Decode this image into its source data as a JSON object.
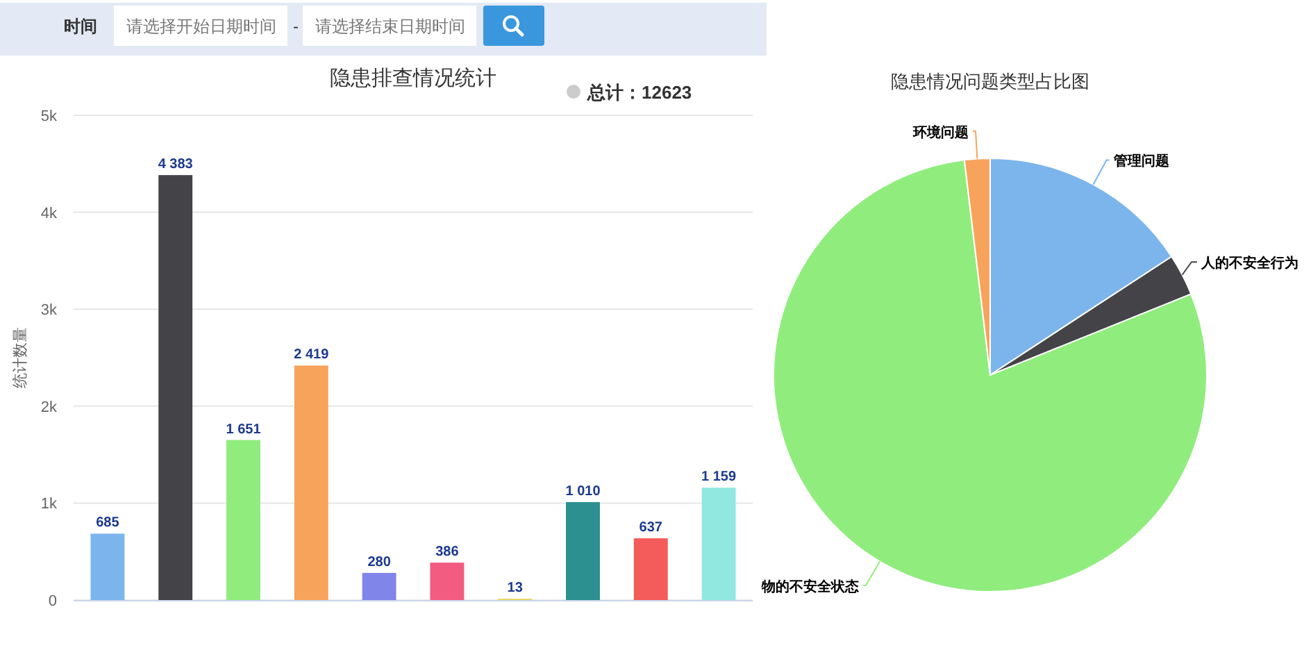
{
  "chart_data": [
    {
      "type": "other",
      "annotations": [
        "时间",
        "请选择开始日期时间",
        "-",
        "请选择结束日期时间"
      ]
    },
    {
      "type": "bar",
      "title": "隐患排查情况统计",
      "ylabel": "统计数量",
      "categories": [
        null,
        null,
        null,
        null,
        null,
        null,
        null,
        null,
        null,
        null
      ],
      "values": [
        685,
        4383,
        1651,
        2419,
        280,
        386,
        13,
        1010,
        637,
        1159
      ],
      "colors": [
        "#7cb5ec",
        "#434348",
        "#90ed7d",
        "#f7a35c",
        "#8085e9",
        "#f15c80",
        "#e4d354",
        "#2b908f",
        "#f45b5b",
        "#91e8e1"
      ],
      "value_labels": [
        "685",
        "4 383",
        "1 651",
        "2 419",
        "280",
        "386",
        "13",
        "1 010",
        "637",
        "1 159"
      ],
      "ylim": [
        0,
        5000
      ],
      "yticks": [
        0,
        {
          "value": 1000,
          "label": "1k"
        },
        {
          "value": 2000,
          "label": "2k"
        },
        {
          "value": 3000,
          "label": "3k"
        },
        {
          "value": 4000,
          "label": "4k"
        },
        {
          "value": 5000,
          "label": "5k"
        }
      ],
      "grid": "y",
      "annotations": [
        "总计：12623"
      ]
    },
    {
      "type": "pie",
      "title": "隐患情况问题类型占比图",
      "categories": [
        "管理问题",
        "人的不安全行为",
        "物的不安全状态",
        "环境问题"
      ],
      "values": [
        15.8,
        3.1,
        79.2,
        1.9
      ],
      "colors": [
        "#7cb5ec",
        "#434348",
        "#90ed7d",
        "#f7a35c"
      ]
    }
  ]
}
